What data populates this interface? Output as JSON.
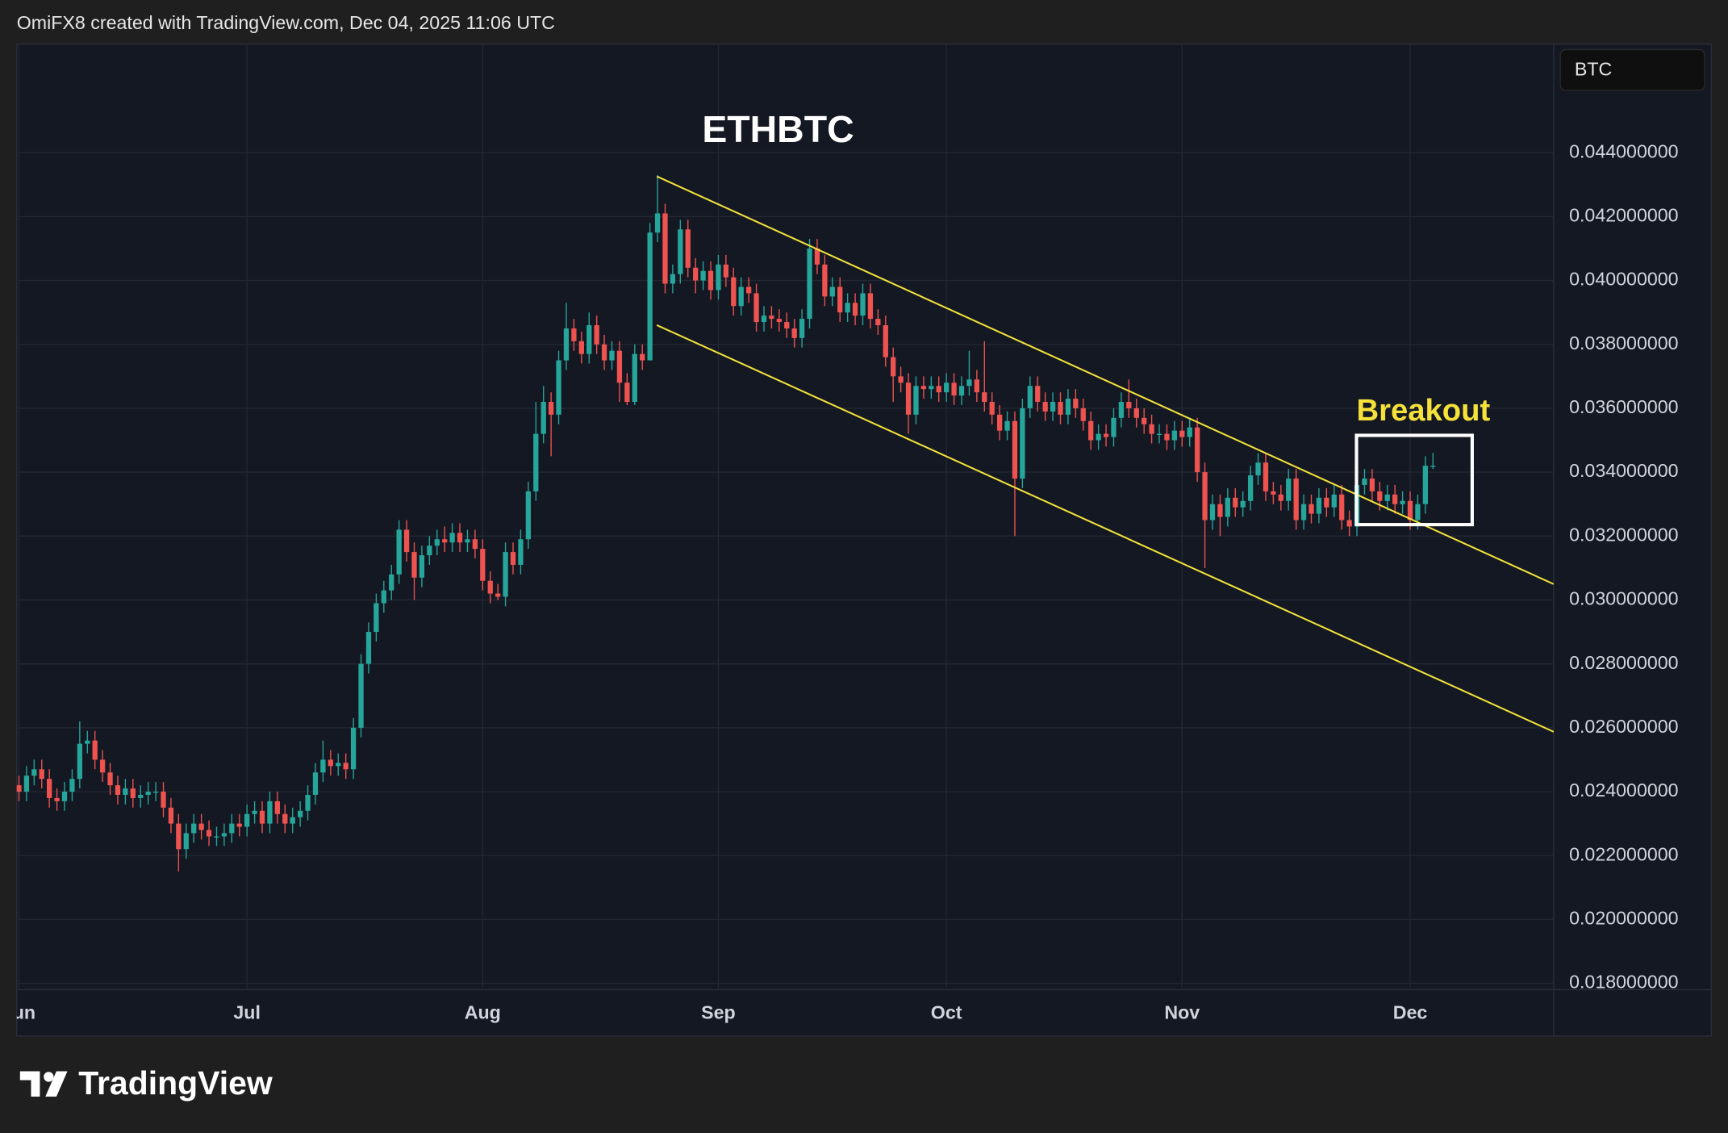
{
  "header": "OmiFX8 created with TradingView.com, Dec 04, 2025 11:06 UTC",
  "currency_label": "BTC",
  "brand": "TradingView",
  "chart_data": {
    "type": "candlestick",
    "title": "ETHBTC",
    "annotation": "Breakout",
    "up_color": "#26a69a",
    "down_color": "#ef5350",
    "grid": true,
    "categories": [
      "Jun",
      null,
      null,
      null,
      null,
      null,
      null,
      null,
      null,
      null,
      null,
      null,
      null,
      null,
      null,
      null,
      null,
      null,
      null,
      null,
      null,
      null,
      null,
      null,
      null,
      null,
      null,
      null,
      null,
      null,
      "Jul",
      null,
      null,
      null,
      null,
      null,
      null,
      null,
      null,
      null,
      null,
      null,
      null,
      null,
      null,
      null,
      null,
      null,
      null,
      null,
      null,
      null,
      null,
      null,
      null,
      null,
      null,
      null,
      null,
      null,
      null,
      "Aug",
      null,
      null,
      null,
      null,
      null,
      null,
      null,
      null,
      null,
      null,
      null,
      null,
      null,
      null,
      null,
      null,
      null,
      null,
      null,
      null,
      null,
      null,
      null,
      null,
      null,
      null,
      null,
      null,
      null,
      null,
      "Sep",
      null,
      null,
      null,
      null,
      null,
      null,
      null,
      null,
      null,
      null,
      null,
      null,
      null,
      null,
      null,
      null,
      null,
      null,
      null,
      null,
      null,
      null,
      null,
      null,
      null,
      null,
      null,
      null,
      null,
      "Oct",
      null,
      null,
      null,
      null,
      null,
      null,
      null,
      null,
      null,
      null,
      null,
      null,
      null,
      null,
      null,
      null,
      null,
      null,
      null,
      null,
      null,
      null,
      null,
      null,
      null,
      null,
      null,
      null,
      null,
      null,
      "Nov",
      null,
      null,
      null,
      null,
      null,
      null,
      null,
      null,
      null,
      null,
      null,
      null,
      null,
      null,
      null,
      null,
      null,
      null,
      null,
      null,
      null,
      null,
      null,
      null,
      null,
      null,
      null,
      null,
      null,
      "Dec",
      null,
      null,
      null
    ],
    "open": [
      0.0242,
      0.024,
      0.0245,
      0.0247,
      0.0244,
      0.0238,
      0.0237,
      0.024,
      0.0244,
      0.0255,
      0.0256,
      0.025,
      0.0246,
      0.0242,
      0.0239,
      0.0241,
      0.0238,
      0.0239,
      0.024,
      0.024,
      0.0235,
      0.023,
      0.0222,
      0.0227,
      0.023,
      0.0228,
      0.0226,
      0.0226,
      0.0227,
      0.023,
      0.0229,
      0.0233,
      0.0234,
      0.023,
      0.0237,
      0.0233,
      0.023,
      0.0232,
      0.0234,
      0.0239,
      0.0246,
      0.025,
      0.0248,
      0.0249,
      0.0247,
      0.026,
      0.028,
      0.029,
      0.0299,
      0.0303,
      0.0308,
      0.0322,
      0.0315,
      0.0307,
      0.0314,
      0.0317,
      0.0319,
      0.0318,
      0.0321,
      0.0318,
      0.0319,
      0.0316,
      0.0306,
      0.0302,
      0.0301,
      0.0315,
      0.0311,
      0.0319,
      0.0334,
      0.0352,
      0.0362,
      0.0358,
      0.0375,
      0.0385,
      0.0381,
      0.0377,
      0.0386,
      0.038,
      0.0375,
      0.0378,
      0.0368,
      0.0362,
      0.0377,
      0.0375,
      0.0415,
      0.0421,
      0.0399,
      0.0402,
      0.0416,
      0.0404,
      0.04,
      0.0403,
      0.0397,
      0.0405,
      0.0401,
      0.0392,
      0.0398,
      0.0396,
      0.0387,
      0.0389,
      0.0388,
      0.0387,
      0.0385,
      0.0382,
      0.0388,
      0.041,
      0.0405,
      0.0395,
      0.0398,
      0.039,
      0.0393,
      0.0389,
      0.0396,
      0.0388,
      0.0386,
      0.0376,
      0.037,
      0.0368,
      0.0358,
      0.0367,
      0.0366,
      0.0367,
      0.0365,
      0.0368,
      0.0364,
      0.0367,
      0.0369,
      0.0365,
      0.0362,
      0.0358,
      0.0353,
      0.0356,
      0.0338,
      0.036,
      0.0367,
      0.0362,
      0.0359,
      0.0362,
      0.0358,
      0.0363,
      0.036,
      0.0356,
      0.035,
      0.0352,
      0.0351,
      0.0357,
      0.0362,
      0.036,
      0.0357,
      0.0355,
      0.0352,
      0.0352,
      0.035,
      0.0353,
      0.0351,
      0.0354,
      0.034,
      0.0325,
      0.033,
      0.0326,
      0.0332,
      0.0329,
      0.0331,
      0.0339,
      0.0343,
      0.0334,
      0.0333,
      0.0331,
      0.0338,
      0.0325,
      0.033,
      0.0327,
      0.0332,
      0.0329,
      0.0333,
      0.0325,
      0.0323,
      0.0336,
      0.0338,
      0.0334,
      0.0331,
      0.0333,
      0.033,
      0.0331,
      0.0325,
      0.033,
      0.0342
    ],
    "high": [
      0.0245,
      0.0248,
      0.025,
      0.025,
      0.0247,
      0.0241,
      0.0243,
      0.0247,
      0.0262,
      0.0259,
      0.0259,
      0.0253,
      0.0249,
      0.0245,
      0.0244,
      0.0244,
      0.0242,
      0.0243,
      0.0243,
      0.0243,
      0.0238,
      0.0233,
      0.023,
      0.0233,
      0.0233,
      0.0231,
      0.0229,
      0.023,
      0.0233,
      0.0233,
      0.0236,
      0.0237,
      0.0237,
      0.024,
      0.024,
      0.0236,
      0.0235,
      0.0237,
      0.0242,
      0.0249,
      0.0256,
      0.0253,
      0.0252,
      0.0252,
      0.0263,
      0.0283,
      0.0293,
      0.0302,
      0.0306,
      0.0311,
      0.0325,
      0.0325,
      0.0318,
      0.0317,
      0.032,
      0.0322,
      0.0323,
      0.0324,
      0.0324,
      0.0322,
      0.0322,
      0.0319,
      0.0309,
      0.0305,
      0.0318,
      0.0318,
      0.0322,
      0.0337,
      0.0362,
      0.0367,
      0.0365,
      0.0378,
      0.0393,
      0.0388,
      0.0384,
      0.039,
      0.0389,
      0.0383,
      0.0381,
      0.0381,
      0.0371,
      0.038,
      0.038,
      0.0418,
      0.0433,
      0.0424,
      0.0405,
      0.0419,
      0.0419,
      0.0407,
      0.0406,
      0.0406,
      0.0408,
      0.0408,
      0.0404,
      0.0401,
      0.0401,
      0.0399,
      0.0392,
      0.0392,
      0.0391,
      0.039,
      0.0388,
      0.0391,
      0.0413,
      0.0413,
      0.0408,
      0.0401,
      0.0401,
      0.0396,
      0.0396,
      0.0399,
      0.0399,
      0.0391,
      0.0389,
      0.0379,
      0.0373,
      0.0371,
      0.037,
      0.037,
      0.037,
      0.037,
      0.0371,
      0.0371,
      0.037,
      0.0378,
      0.0372,
      0.0381,
      0.0365,
      0.0361,
      0.0359,
      0.0359,
      0.0363,
      0.037,
      0.037,
      0.0365,
      0.0365,
      0.0365,
      0.0366,
      0.0366,
      0.0363,
      0.0359,
      0.0355,
      0.0355,
      0.036,
      0.0365,
      0.0369,
      0.0363,
      0.036,
      0.0358,
      0.0355,
      0.0355,
      0.0356,
      0.0356,
      0.0357,
      0.0357,
      0.0343,
      0.0333,
      0.0333,
      0.0335,
      0.0335,
      0.0334,
      0.0342,
      0.0346,
      0.0346,
      0.0337,
      0.0336,
      0.0341,
      0.0341,
      0.0333,
      0.0333,
      0.0335,
      0.0335,
      0.0336,
      0.0336,
      0.0328,
      0.0339,
      0.0341,
      0.0341,
      0.0337,
      0.0336,
      0.0336,
      0.0334,
      0.0334,
      0.0333,
      0.0345,
      0.0346
    ],
    "low": [
      0.0237,
      0.0237,
      0.0242,
      0.0241,
      0.0235,
      0.0234,
      0.0234,
      0.0237,
      0.0241,
      0.0252,
      0.0247,
      0.0243,
      0.0239,
      0.0236,
      0.0236,
      0.0235,
      0.0235,
      0.0236,
      0.0237,
      0.0232,
      0.0227,
      0.0215,
      0.0219,
      0.0224,
      0.0225,
      0.0223,
      0.0223,
      0.0223,
      0.0224,
      0.0226,
      0.0226,
      0.023,
      0.0227,
      0.0227,
      0.023,
      0.0227,
      0.0227,
      0.0229,
      0.0231,
      0.0236,
      0.0243,
      0.0245,
      0.0245,
      0.0244,
      0.0244,
      0.0257,
      0.0277,
      0.0287,
      0.0296,
      0.03,
      0.0305,
      0.0312,
      0.03,
      0.0304,
      0.0311,
      0.0314,
      0.0315,
      0.0315,
      0.0315,
      0.0315,
      0.0313,
      0.0303,
      0.0299,
      0.03,
      0.0298,
      0.0308,
      0.0308,
      0.0316,
      0.0331,
      0.0349,
      0.0345,
      0.0355,
      0.0372,
      0.0378,
      0.0374,
      0.0374,
      0.0377,
      0.0372,
      0.0372,
      0.0362,
      0.0361,
      0.0361,
      0.0372,
      0.0375,
      0.0412,
      0.0396,
      0.0396,
      0.0399,
      0.0401,
      0.0396,
      0.0397,
      0.0394,
      0.0394,
      0.0398,
      0.0389,
      0.0389,
      0.0393,
      0.0384,
      0.0384,
      0.0385,
      0.0384,
      0.0382,
      0.0379,
      0.0379,
      0.0385,
      0.0402,
      0.0392,
      0.0392,
      0.0387,
      0.0387,
      0.0386,
      0.0386,
      0.0385,
      0.0383,
      0.0373,
      0.0362,
      0.0365,
      0.0352,
      0.0355,
      0.0363,
      0.0363,
      0.0362,
      0.0362,
      0.0361,
      0.0361,
      0.0364,
      0.0362,
      0.0359,
      0.0355,
      0.035,
      0.035,
      0.032,
      0.0335,
      0.0357,
      0.0359,
      0.0356,
      0.0356,
      0.0355,
      0.0355,
      0.0357,
      0.0353,
      0.0347,
      0.0347,
      0.0348,
      0.0348,
      0.0354,
      0.0357,
      0.0354,
      0.0352,
      0.0349,
      0.0349,
      0.0347,
      0.0347,
      0.0348,
      0.0348,
      0.0337,
      0.031,
      0.0322,
      0.032,
      0.0323,
      0.0326,
      0.0326,
      0.0328,
      0.0336,
      0.0331,
      0.033,
      0.0328,
      0.0328,
      0.0322,
      0.0322,
      0.0324,
      0.0324,
      0.0326,
      0.0326,
      0.0322,
      0.032,
      0.032,
      0.0333,
      0.0331,
      0.0328,
      0.0328,
      0.0327,
      0.0327,
      0.0322,
      0.0322,
      0.0327,
      0.0341
    ],
    "close": [
      0.024,
      0.0245,
      0.0247,
      0.0244,
      0.0238,
      0.0237,
      0.024,
      0.0244,
      0.0255,
      0.0256,
      0.025,
      0.0246,
      0.0242,
      0.0239,
      0.0241,
      0.0238,
      0.0239,
      0.024,
      0.024,
      0.0235,
      0.023,
      0.0222,
      0.0227,
      0.023,
      0.0228,
      0.0226,
      0.0226,
      0.0227,
      0.023,
      0.0229,
      0.0233,
      0.0234,
      0.023,
      0.0237,
      0.0233,
      0.023,
      0.0232,
      0.0234,
      0.0239,
      0.0246,
      0.025,
      0.0248,
      0.0249,
      0.0247,
      0.026,
      0.028,
      0.029,
      0.0299,
      0.0303,
      0.0308,
      0.0322,
      0.0315,
      0.0307,
      0.0314,
      0.0317,
      0.0319,
      0.0318,
      0.0321,
      0.0318,
      0.0319,
      0.0316,
      0.0306,
      0.0302,
      0.0301,
      0.0315,
      0.0311,
      0.0319,
      0.0334,
      0.0352,
      0.0362,
      0.0358,
      0.0375,
      0.0385,
      0.0381,
      0.0377,
      0.0386,
      0.038,
      0.0375,
      0.0378,
      0.0368,
      0.0362,
      0.0377,
      0.0375,
      0.0415,
      0.0421,
      0.0399,
      0.0402,
      0.0416,
      0.0404,
      0.04,
      0.0403,
      0.0397,
      0.0405,
      0.0401,
      0.0392,
      0.0398,
      0.0396,
      0.0387,
      0.0389,
      0.0388,
      0.0387,
      0.0385,
      0.0382,
      0.0388,
      0.041,
      0.0405,
      0.0395,
      0.0398,
      0.039,
      0.0393,
      0.0389,
      0.0396,
      0.0388,
      0.0386,
      0.0376,
      0.037,
      0.0368,
      0.0358,
      0.0367,
      0.0366,
      0.0367,
      0.0365,
      0.0368,
      0.0364,
      0.0367,
      0.0369,
      0.0365,
      0.0362,
      0.0358,
      0.0353,
      0.0356,
      0.0338,
      0.036,
      0.0367,
      0.0362,
      0.0359,
      0.0362,
      0.0358,
      0.0363,
      0.036,
      0.0356,
      0.035,
      0.0352,
      0.0351,
      0.0357,
      0.0362,
      0.036,
      0.0357,
      0.0355,
      0.0352,
      0.0352,
      0.035,
      0.0353,
      0.0351,
      0.0354,
      0.034,
      0.0325,
      0.033,
      0.0326,
      0.0332,
      0.0329,
      0.0331,
      0.0339,
      0.0343,
      0.0334,
      0.0333,
      0.0331,
      0.0338,
      0.0325,
      0.033,
      0.0327,
      0.0332,
      0.0329,
      0.0333,
      0.0325,
      0.0323,
      0.0336,
      0.0338,
      0.0334,
      0.0331,
      0.0333,
      0.033,
      0.0331,
      0.0325,
      0.033,
      0.0342,
      0.0342
    ],
    "ylim": [
      0.0178,
      0.0474
    ],
    "yticks": [
      {
        "value": 0.018,
        "label": "0.018000000"
      },
      {
        "value": 0.02,
        "label": "0.020000000"
      },
      {
        "value": 0.022,
        "label": "0.022000000"
      },
      {
        "value": 0.024,
        "label": "0.024000000"
      },
      {
        "value": 0.026,
        "label": "0.026000000"
      },
      {
        "value": 0.028,
        "label": "0.028000000"
      },
      {
        "value": 0.03,
        "label": "0.030000000"
      },
      {
        "value": 0.032,
        "label": "0.032000000"
      },
      {
        "value": 0.034,
        "label": "0.034000000"
      },
      {
        "value": 0.036,
        "label": "0.036000000"
      },
      {
        "value": 0.038,
        "label": "0.038000000"
      },
      {
        "value": 0.04,
        "label": "0.040000000"
      },
      {
        "value": 0.042,
        "label": "0.042000000"
      },
      {
        "value": 0.044,
        "label": "0.044000000"
      }
    ]
  }
}
